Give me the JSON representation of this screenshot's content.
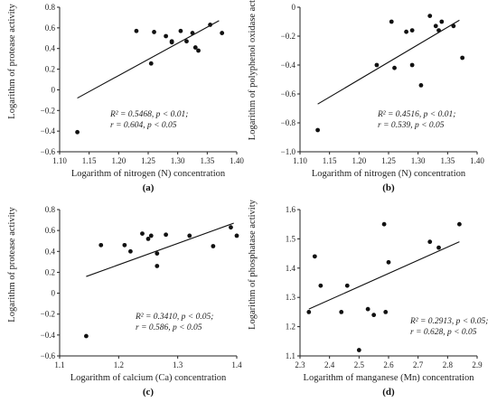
{
  "chart_data": [
    {
      "type": "scatter",
      "panel_label": "(a)",
      "xlabel": "Logarithm of nitrogen (N) concentration",
      "ylabel": "Logarithm of protease activity",
      "xlim": [
        1.1,
        1.4
      ],
      "ylim": [
        -0.6,
        0.8
      ],
      "xticks": [
        "1.10",
        "1.15",
        "1.20",
        "1.25",
        "1.30",
        "1.35",
        "1.40"
      ],
      "yticks": [
        "−0.6",
        "−0.4",
        "−0.2",
        "0",
        "0.2",
        "0.4",
        "0.6",
        "0.8"
      ],
      "points": [
        [
          1.13,
          -0.41
        ],
        [
          1.23,
          0.57
        ],
        [
          1.255,
          0.255
        ],
        [
          1.26,
          0.56
        ],
        [
          1.28,
          0.52
        ],
        [
          1.29,
          0.46
        ],
        [
          1.29,
          0.47
        ],
        [
          1.305,
          0.57
        ],
        [
          1.315,
          0.47
        ],
        [
          1.325,
          0.55
        ],
        [
          1.33,
          0.41
        ],
        [
          1.335,
          0.38
        ],
        [
          1.355,
          0.63
        ],
        [
          1.375,
          0.55
        ]
      ],
      "fit_line": [
        [
          1.13,
          -0.08
        ],
        [
          1.37,
          0.67
        ]
      ],
      "annotation_line1": "R² = 0.5468, p < 0.01;",
      "annotation_line2": "r = 0.604, p < 0.05"
    },
    {
      "type": "scatter",
      "panel_label": "(b)",
      "xlabel": "Logarithm of nitrogen (N) concentration",
      "ylabel": "Logarithm of polyphenol oxidase activity",
      "xlim": [
        1.1,
        1.4
      ],
      "ylim": [
        -1.0,
        0.0
      ],
      "xticks": [
        "1.10",
        "1.15",
        "1.20",
        "1.25",
        "1.30",
        "1.35",
        "1.40"
      ],
      "yticks": [
        "−1.0",
        "−0.8",
        "−0.6",
        "−0.4",
        "−0.2",
        "0"
      ],
      "points": [
        [
          1.13,
          -0.85
        ],
        [
          1.23,
          -0.4
        ],
        [
          1.255,
          -0.1
        ],
        [
          1.26,
          -0.42
        ],
        [
          1.28,
          -0.17
        ],
        [
          1.29,
          -0.16
        ],
        [
          1.29,
          -0.4
        ],
        [
          1.305,
          -0.54
        ],
        [
          1.32,
          -0.06
        ],
        [
          1.33,
          -0.13
        ],
        [
          1.335,
          -0.16
        ],
        [
          1.34,
          -0.1
        ],
        [
          1.36,
          -0.13
        ],
        [
          1.375,
          -0.35
        ]
      ],
      "fit_line": [
        [
          1.13,
          -0.67
        ],
        [
          1.37,
          -0.09
        ]
      ],
      "annotation_line1": "R² = 0.4516, p < 0.01;",
      "annotation_line2": "r = 0.539, p < 0.05"
    },
    {
      "type": "scatter",
      "panel_label": "(c)",
      "xlabel": "Logarithm of calcium (Ca) concentration",
      "ylabel": "Logarithm of protease activity",
      "xlim": [
        1.1,
        1.4
      ],
      "ylim": [
        -0.6,
        0.8
      ],
      "xticks": [
        "1.1",
        "1.2",
        "1.3",
        "1.4"
      ],
      "yticks": [
        "−0.6",
        "−0.4",
        "−0.2",
        "0",
        "0.2",
        "0.4",
        "0.6",
        "0.8"
      ],
      "points": [
        [
          1.145,
          -0.41
        ],
        [
          1.17,
          0.46
        ],
        [
          1.21,
          0.46
        ],
        [
          1.22,
          0.4
        ],
        [
          1.24,
          0.57
        ],
        [
          1.25,
          0.52
        ],
        [
          1.255,
          0.55
        ],
        [
          1.265,
          0.38
        ],
        [
          1.265,
          0.26
        ],
        [
          1.28,
          0.56
        ],
        [
          1.32,
          0.55
        ],
        [
          1.36,
          0.45
        ],
        [
          1.39,
          0.63
        ],
        [
          1.4,
          0.55
        ]
      ],
      "fit_line": [
        [
          1.145,
          0.16
        ],
        [
          1.395,
          0.67
        ]
      ],
      "annotation_line1": "R² = 0.3410, p < 0.05;",
      "annotation_line2": "r = 0.586, p < 0.05"
    },
    {
      "type": "scatter",
      "panel_label": "(d)",
      "xlabel": "Logarithm of manganese (Mn) concentration",
      "ylabel": "Logarithm of phosphatase activity",
      "xlim": [
        2.3,
        2.9
      ],
      "ylim": [
        1.1,
        1.6
      ],
      "xticks": [
        "2.3",
        "2.4",
        "2.5",
        "2.6",
        "2.7",
        "2.8",
        "2.9"
      ],
      "yticks": [
        "1.1",
        "1.2",
        "1.3",
        "1.4",
        "1.5",
        "1.6"
      ],
      "points": [
        [
          2.33,
          1.25
        ],
        [
          2.35,
          1.44
        ],
        [
          2.37,
          1.34
        ],
        [
          2.44,
          1.25
        ],
        [
          2.46,
          1.34
        ],
        [
          2.5,
          1.12
        ],
        [
          2.53,
          1.26
        ],
        [
          2.55,
          1.24
        ],
        [
          2.585,
          1.55
        ],
        [
          2.59,
          1.25
        ],
        [
          2.6,
          1.42
        ],
        [
          2.74,
          1.49
        ],
        [
          2.77,
          1.47
        ],
        [
          2.84,
          1.55
        ]
      ],
      "fit_line": [
        [
          2.33,
          1.26
        ],
        [
          2.84,
          1.49
        ]
      ],
      "annotation_line1": "R² = 0.2913, p < 0.05;",
      "annotation_line2": "r = 0.628, p < 0.05"
    }
  ]
}
